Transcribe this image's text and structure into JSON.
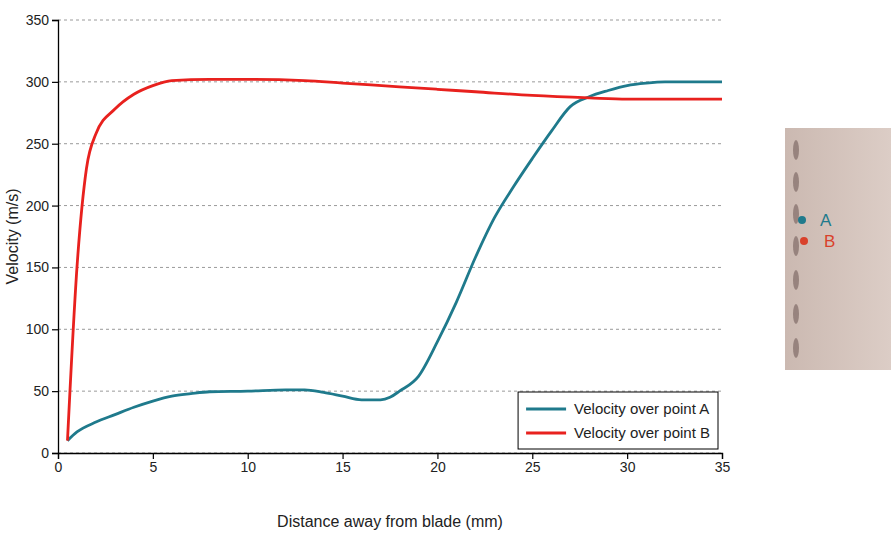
{
  "chart_data": {
    "type": "line",
    "x_label": "Distance away from blade (mm)",
    "y_label": "Velocity (m/s)",
    "xlim": [
      0,
      35
    ],
    "xticks": [
      0,
      5,
      10,
      15,
      20,
      25,
      30,
      35
    ],
    "ylim": [
      0,
      350
    ],
    "yticks": [
      0,
      50,
      100,
      150,
      200,
      250,
      300,
      350
    ],
    "grid": true,
    "legend": "lower right",
    "series": [
      {
        "name": "Velocity over point A",
        "color": "#1f7a8c",
        "x": [
          0.5,
          1,
          2,
          3,
          4,
          5,
          6,
          7,
          8,
          10,
          12,
          13,
          14,
          15,
          16,
          17,
          17.5,
          18,
          19,
          20,
          21,
          22,
          23,
          24,
          25,
          26,
          27,
          28,
          29,
          30,
          31,
          32,
          33,
          35
        ],
        "values": [
          10,
          17,
          25,
          31,
          37,
          42,
          46,
          48,
          49.5,
          50,
          51,
          51,
          49,
          46,
          43,
          43,
          45,
          50,
          62,
          90,
          122,
          158,
          190,
          215,
          238,
          260,
          280,
          288,
          293,
          297,
          299,
          300,
          300,
          300
        ]
      },
      {
        "name": "Velocity over point B",
        "color": "#e8211e",
        "x": [
          0.5,
          1,
          1.5,
          2,
          3,
          4,
          5,
          6,
          8,
          10,
          13,
          15,
          18,
          20,
          22,
          25,
          28,
          30,
          35
        ],
        "values": [
          10,
          150,
          230,
          258,
          278,
          290,
          297,
          301,
          302,
          302,
          301,
          299,
          296,
          294,
          292,
          289,
          287,
          286,
          286
        ]
      }
    ]
  },
  "inset": {
    "points": [
      {
        "label": "A",
        "color": "#1f7a8c"
      },
      {
        "label": "B",
        "color": "#d9412b"
      }
    ]
  }
}
